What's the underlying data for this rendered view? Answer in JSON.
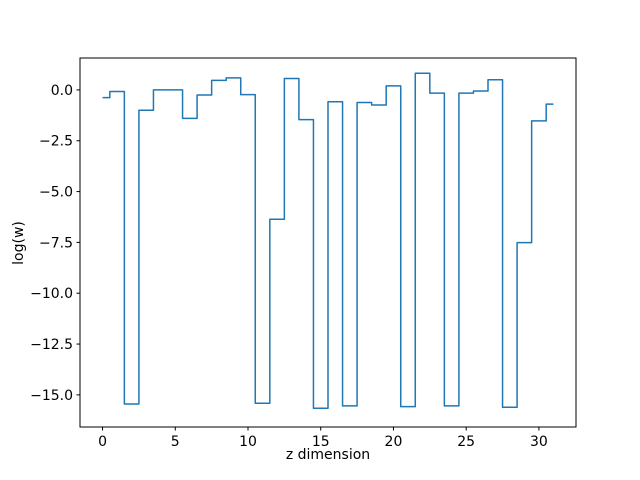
{
  "figure": {
    "background": "#ffffff",
    "line_color": "#1f77b4",
    "axes_color": "#000000"
  },
  "chart_data": {
    "type": "line",
    "style": "steps-mid",
    "title": "",
    "xlabel": "z dimension",
    "ylabel": "log(w)",
    "grid": false,
    "legend": null,
    "xlim": [
      -1.55,
      32.55
    ],
    "ylim": [
      -16.58,
      1.57
    ],
    "xticks": [
      0,
      5,
      10,
      15,
      20,
      25,
      30
    ],
    "xtick_labels": [
      "0",
      "5",
      "10",
      "15",
      "20",
      "25",
      "30"
    ],
    "yticks": [
      0.0,
      -2.5,
      -5.0,
      -7.5,
      -10.0,
      -12.5,
      -15.0
    ],
    "ytick_labels": [
      "0.0",
      "−2.5",
      "−5.0",
      "−7.5",
      "−10.0",
      "−12.5",
      "−15.0"
    ],
    "x": [
      0,
      1,
      2,
      3,
      4,
      5,
      6,
      7,
      8,
      9,
      10,
      11,
      12,
      13,
      14,
      15,
      16,
      17,
      18,
      19,
      20,
      21,
      22,
      23,
      24,
      25,
      26,
      27,
      28,
      29,
      30,
      31
    ],
    "values": [
      -0.38,
      -0.08,
      -15.45,
      -1.0,
      0.0,
      0.0,
      -1.4,
      -0.25,
      0.47,
      0.59,
      -0.23,
      -15.41,
      -6.36,
      0.56,
      -1.46,
      -15.66,
      -0.58,
      -15.54,
      -0.62,
      -0.74,
      0.2,
      -15.58,
      0.82,
      -0.16,
      -15.54,
      -0.16,
      -0.05,
      0.5,
      -15.61,
      -7.51,
      -1.52,
      -0.7
    ]
  }
}
